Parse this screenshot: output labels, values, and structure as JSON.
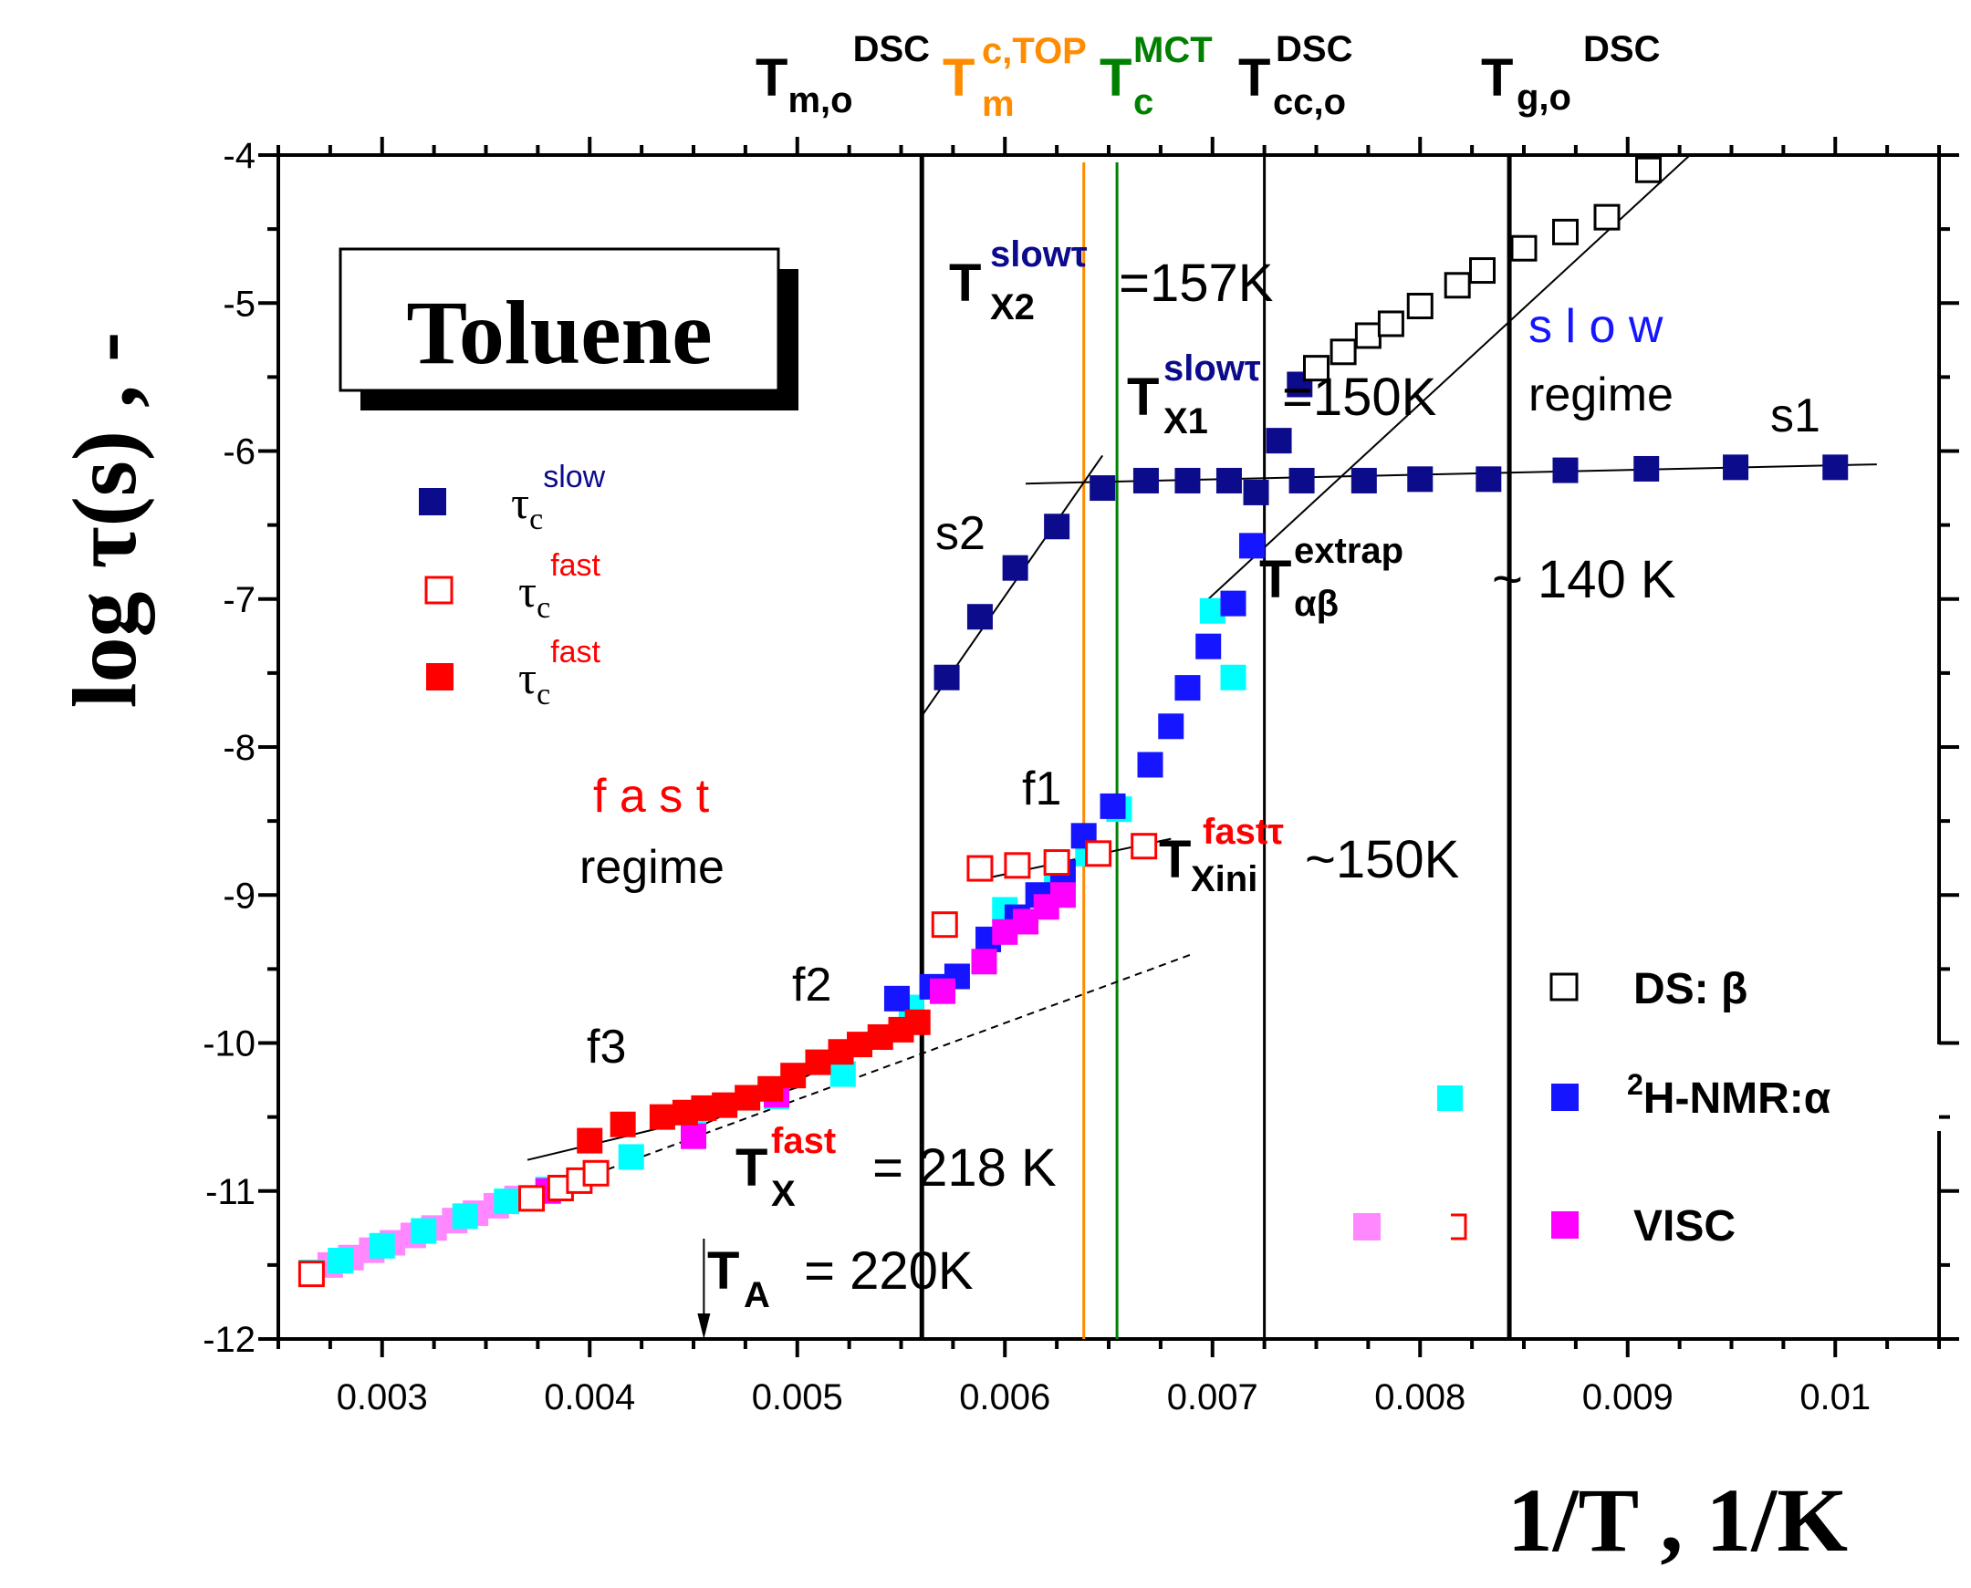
{
  "chart_data": {
    "type": "scatter",
    "title": "Toluene",
    "xlabel": "1/T , 1/K",
    "ylabel": "log τ(s) , -",
    "xlim": [
      0.0025,
      0.0105
    ],
    "ylim": [
      -12,
      -4
    ],
    "xticks": [
      0.003,
      0.004,
      0.005,
      0.006,
      0.007,
      0.008,
      0.009,
      0.01
    ],
    "xtick_labels": [
      "0.003",
      "0.004",
      "0.005",
      "0.006",
      "0.007",
      "0.008",
      "0.009",
      "0.01"
    ],
    "yticks": [
      -4,
      -5,
      -6,
      -7,
      -8,
      -9,
      -10,
      -11,
      -12
    ],
    "ytick_labels": [
      "-4",
      "-5",
      "-6",
      "-7",
      "-8",
      "-9",
      "-10",
      "-11",
      "-12"
    ],
    "colors": {
      "navy": "#0b0b8c",
      "blue": "#1515ff",
      "red": "#ff0000",
      "cyan": "#00ffff",
      "magenta": "#ff00ff",
      "pink": "#ff88ff",
      "orange": "#ff8c00",
      "green": "#008000",
      "black": "#000000"
    },
    "series": [
      {
        "name": "τc slow",
        "marker": "square-filled",
        "color": "#0b0b8c",
        "points": [
          [
            0.00572,
            -7.53
          ],
          [
            0.00588,
            -7.12
          ],
          [
            0.00605,
            -6.79
          ],
          [
            0.00625,
            -6.51
          ],
          [
            0.00647,
            -6.25
          ],
          [
            0.00668,
            -6.2
          ],
          [
            0.00688,
            -6.2
          ],
          [
            0.00708,
            -6.2
          ],
          [
            0.00721,
            -6.28
          ],
          [
            0.00732,
            -5.93
          ],
          [
            0.00742,
            -5.55
          ],
          [
            0.00743,
            -6.2
          ],
          [
            0.00773,
            -6.2
          ],
          [
            0.008,
            -6.19
          ],
          [
            0.00833,
            -6.19
          ],
          [
            0.0087,
            -6.13
          ],
          [
            0.00909,
            -6.12
          ],
          [
            0.00952,
            -6.11
          ],
          [
            0.01,
            -6.11
          ]
        ]
      },
      {
        "name": "τc fast (open)",
        "marker": "square-open",
        "color": "#ff0000",
        "points": [
          [
            0.00266,
            -11.56
          ],
          [
            0.00372,
            -11.05
          ],
          [
            0.00386,
            -10.98
          ],
          [
            0.00395,
            -10.93
          ],
          [
            0.00403,
            -10.88
          ],
          [
            0.00571,
            -9.2
          ],
          [
            0.00588,
            -8.82
          ],
          [
            0.00606,
            -8.8
          ],
          [
            0.00625,
            -8.78
          ],
          [
            0.00645,
            -8.72
          ],
          [
            0.00667,
            -8.67
          ]
        ]
      },
      {
        "name": "τc fast (filled)",
        "marker": "square-filled",
        "color": "#ff0000",
        "points": [
          [
            0.004,
            -10.66
          ],
          [
            0.00416,
            -10.55
          ],
          [
            0.00435,
            -10.5
          ],
          [
            0.00446,
            -10.47
          ],
          [
            0.00455,
            -10.44
          ],
          [
            0.00465,
            -10.42
          ],
          [
            0.00476,
            -10.37
          ],
          [
            0.00487,
            -10.31
          ],
          [
            0.00498,
            -10.22
          ],
          [
            0.0051,
            -10.13
          ],
          [
            0.00521,
            -10.06
          ],
          [
            0.0053,
            -10.01
          ],
          [
            0.0054,
            -9.96
          ],
          [
            0.0055,
            -9.91
          ],
          [
            0.00558,
            -9.86
          ]
        ]
      },
      {
        "name": "DS: β",
        "marker": "square-open",
        "color": "#000000",
        "points": [
          [
            0.0075,
            -5.44
          ],
          [
            0.00763,
            -5.33
          ],
          [
            0.00775,
            -5.22
          ],
          [
            0.00786,
            -5.14
          ],
          [
            0.008,
            -5.02
          ],
          [
            0.00818,
            -4.88
          ],
          [
            0.0083,
            -4.78
          ],
          [
            0.0085,
            -4.63
          ],
          [
            0.0087,
            -4.52
          ],
          [
            0.0089,
            -4.42
          ],
          [
            0.0091,
            -4.1
          ]
        ]
      },
      {
        "name": "2H-NMR:α",
        "marker": "square-filled",
        "color": "#1515ff",
        "points": [
          [
            0.00548,
            -9.7
          ],
          [
            0.00565,
            -9.62
          ],
          [
            0.00577,
            -9.55
          ],
          [
            0.00592,
            -9.3
          ],
          [
            0.00606,
            -9.15
          ],
          [
            0.00616,
            -9.0
          ],
          [
            0.00628,
            -8.85
          ],
          [
            0.00638,
            -8.6
          ],
          [
            0.00652,
            -8.4
          ],
          [
            0.0067,
            -8.12
          ],
          [
            0.0068,
            -7.86
          ],
          [
            0.00688,
            -7.6
          ],
          [
            0.00698,
            -7.32
          ],
          [
            0.0071,
            -7.03
          ],
          [
            0.00719,
            -6.64
          ]
        ]
      },
      {
        "name": "cyan",
        "marker": "square-filled",
        "color": "#00ffff",
        "points": [
          [
            0.00266,
            -11.55
          ],
          [
            0.0028,
            -11.47
          ],
          [
            0.003,
            -11.37
          ],
          [
            0.0032,
            -11.27
          ],
          [
            0.0034,
            -11.17
          ],
          [
            0.0036,
            -11.07
          ],
          [
            0.0038,
            -10.99
          ],
          [
            0.0042,
            -10.77
          ],
          [
            0.0045,
            -10.52
          ],
          [
            0.0049,
            -10.36
          ],
          [
            0.00522,
            -10.21
          ],
          [
            0.00555,
            -9.76
          ],
          [
            0.006,
            -9.1
          ],
          [
            0.00625,
            -8.86
          ],
          [
            0.0064,
            -8.72
          ],
          [
            0.00655,
            -8.42
          ],
          [
            0.007,
            -7.08
          ],
          [
            0.0071,
            -7.53
          ]
        ]
      },
      {
        "name": "pink",
        "marker": "square-filled",
        "color": "#ff88ff",
        "points": [
          [
            0.00266,
            -11.55
          ],
          [
            0.00275,
            -11.5
          ],
          [
            0.00285,
            -11.45
          ],
          [
            0.00295,
            -11.4
          ],
          [
            0.00305,
            -11.35
          ],
          [
            0.00315,
            -11.3
          ],
          [
            0.00325,
            -11.25
          ],
          [
            0.00335,
            -11.2
          ],
          [
            0.00345,
            -11.15
          ],
          [
            0.00355,
            -11.1
          ],
          [
            0.00365,
            -11.05
          ]
        ]
      },
      {
        "name": "VISC",
        "marker": "square-filled",
        "color": "#ff00ff",
        "points": [
          [
            0.0038,
            -11.0
          ],
          [
            0.0045,
            -10.63
          ],
          [
            0.0049,
            -10.35
          ],
          [
            0.0057,
            -9.65
          ],
          [
            0.0059,
            -9.45
          ],
          [
            0.006,
            -9.25
          ],
          [
            0.0061,
            -9.18
          ],
          [
            0.0062,
            -9.08
          ],
          [
            0.00628,
            -9.0
          ]
        ]
      }
    ],
    "fit_lines": [
      {
        "name": "s1",
        "points": [
          [
            0.0061,
            -6.22
          ],
          [
            0.0102,
            -6.09
          ]
        ]
      },
      {
        "name": "s2",
        "points": [
          [
            0.0056,
            -7.79
          ],
          [
            0.00647,
            -6.03
          ]
        ]
      },
      {
        "name": "f1",
        "points": [
          [
            0.0059,
            -8.89
          ],
          [
            0.0068,
            -8.62
          ]
        ]
      },
      {
        "name": "β",
        "points": [
          [
            0.00698,
            -7.0
          ],
          [
            0.0093,
            -4.0
          ]
        ]
      },
      {
        "name": "f2",
        "points": [
          [
            0.00455,
            -10.55
          ],
          [
            0.0049,
            -10.32
          ],
          [
            0.0052,
            -10.12
          ],
          [
            0.0056,
            -9.88
          ]
        ]
      },
      {
        "name": "f3",
        "points": [
          [
            0.0037,
            -10.79
          ],
          [
            0.0045,
            -10.52
          ],
          [
            0.005,
            -10.3
          ]
        ]
      },
      {
        "name": "dashed",
        "points": [
          [
            0.0027,
            -11.57
          ],
          [
            0.0069,
            -9.4
          ]
        ]
      }
    ],
    "vertical_lines": [
      {
        "name": "Tm,o DSC",
        "x": 0.0056,
        "color": "#000000"
      },
      {
        "name": "Tm c,TOP",
        "x": 0.00638,
        "color": "#ff8c00"
      },
      {
        "name": "Tc MCT",
        "x": 0.00654,
        "color": "#008000"
      },
      {
        "name": "Tcc,o DSC",
        "x": 0.00725,
        "color": "#000000"
      },
      {
        "name": "Tg,o DSC",
        "x": 0.00843,
        "color": "#000000"
      }
    ],
    "ta_arrow_x": 0.00455
  },
  "top_labels": {
    "tm": {
      "main": "T",
      "sub": "m,o",
      "sup": "DSC"
    },
    "tm_top": {
      "main": "T",
      "sub": "m",
      "sup": "c,TOP"
    },
    "tc": {
      "main": "T",
      "sub": "c",
      "sup": "MCT"
    },
    "tcc": {
      "main": "T",
      "sub": "cc,o",
      "sup": "DSC"
    },
    "tg": {
      "main": "T",
      "sub": "g,o",
      "sup": "DSC"
    }
  },
  "annotations": {
    "tx2": {
      "main": "T",
      "sub": "X2",
      "sup": "slowτ",
      "value": " =157K"
    },
    "tx1": {
      "main": "T",
      "sub": "X1",
      "sup": "slowτ",
      "value": "=150K"
    },
    "tab": {
      "main": "T",
      "sub": "αβ",
      "sup": "extrap",
      "value": "~ 140 K"
    },
    "txini": {
      "main": "T",
      "sub": "Xini",
      "sup": "fastτ",
      "value": "~150K"
    },
    "txfast": {
      "main": "T",
      "sub": "X",
      "sup": "fast",
      "value": " = 218 K"
    },
    "ta": {
      "main": "T",
      "sub": "A",
      "value": " = 220K"
    },
    "s1": "s1",
    "s2": "s2",
    "f1": "f1",
    "f2": "f2",
    "f3": "f3",
    "slow": "s l o w",
    "slow_regime": "regime",
    "fast": "f a s t",
    "fast_regime": "regime"
  },
  "legend_left": {
    "tau": "τ",
    "sub": "c",
    "items": [
      {
        "sup": "slow"
      },
      {
        "sup": "fast"
      },
      {
        "sup": "fast"
      }
    ]
  },
  "legend_right": {
    "ds": "DS: β",
    "nmr_sup": "2",
    "nmr": "H-NMR:α",
    "visc": "VISC"
  }
}
